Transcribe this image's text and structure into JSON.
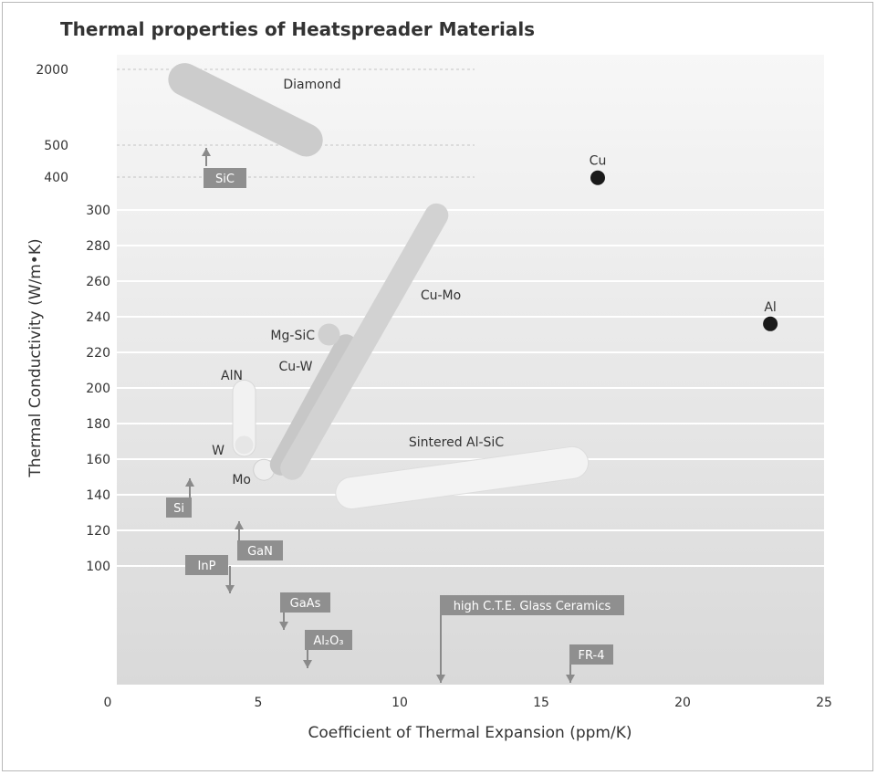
{
  "chart_data": {
    "type": "scatter",
    "title": "Thermal properties of Heatspreader Materials",
    "xlabel": "Coefficient of Thermal Expansion (ppm/K)",
    "ylabel": "Thermal Conductivity (W/m•K)",
    "xlim": [
      0,
      25
    ],
    "x_ticks": [
      "0",
      "5",
      "10",
      "15",
      "20",
      "25"
    ],
    "y_ticks": [
      "100",
      "120",
      "140",
      "160",
      "180",
      "200",
      "220",
      "240",
      "260",
      "280",
      "300",
      "400",
      "500",
      "2000"
    ],
    "y_scale": "piecewise",
    "grid": true,
    "points": [
      {
        "name": "Cu",
        "x": 17.0,
        "y": 398
      },
      {
        "name": "Al",
        "x": 23.1,
        "y": 236
      }
    ],
    "regions": [
      {
        "name": "Diamond",
        "x": [
          2.4,
          6.7
        ],
        "y": [
          1800,
          600
        ]
      },
      {
        "name": "Cu-Mo",
        "x": [
          6.2,
          11.3
        ],
        "y": [
          155,
          297
        ]
      },
      {
        "name": "Cu-W",
        "x": [
          5.8,
          8.1
        ],
        "y": [
          157,
          224
        ]
      },
      {
        "name": "Mg-SiC",
        "x": [
          7.5,
          7.5
        ],
        "y": [
          230,
          230
        ]
      },
      {
        "name": "AlN",
        "x": [
          4.5,
          4.5
        ],
        "y": [
          168,
          198
        ]
      },
      {
        "name": "W",
        "x": [
          4.5,
          4.5
        ],
        "y": [
          168,
          168
        ]
      },
      {
        "name": "Mo",
        "x": [
          5.2,
          5.2
        ],
        "y": [
          154,
          154
        ]
      },
      {
        "name": "Sintered Al-SiC",
        "x": [
          8.3,
          16.1
        ],
        "y": [
          141,
          158
        ]
      }
    ],
    "markers": [
      {
        "name": "SiC",
        "direction": "up",
        "text": "SiC"
      },
      {
        "name": "Si",
        "direction": "up",
        "text": "Si"
      },
      {
        "name": "GaN",
        "direction": "up",
        "text": "GaN"
      },
      {
        "name": "InP",
        "direction": "down",
        "text": "InP"
      },
      {
        "name": "GaAs",
        "direction": "down",
        "text": "GaAs"
      },
      {
        "name": "Al2O3",
        "direction": "down",
        "text": "Al₂O₃"
      },
      {
        "name": "high C.T.E. Glass Ceramics",
        "direction": "down",
        "text": "high C.T.E. Glass Ceramics"
      },
      {
        "name": "FR-4",
        "direction": "down",
        "text": "FR-4"
      }
    ]
  }
}
